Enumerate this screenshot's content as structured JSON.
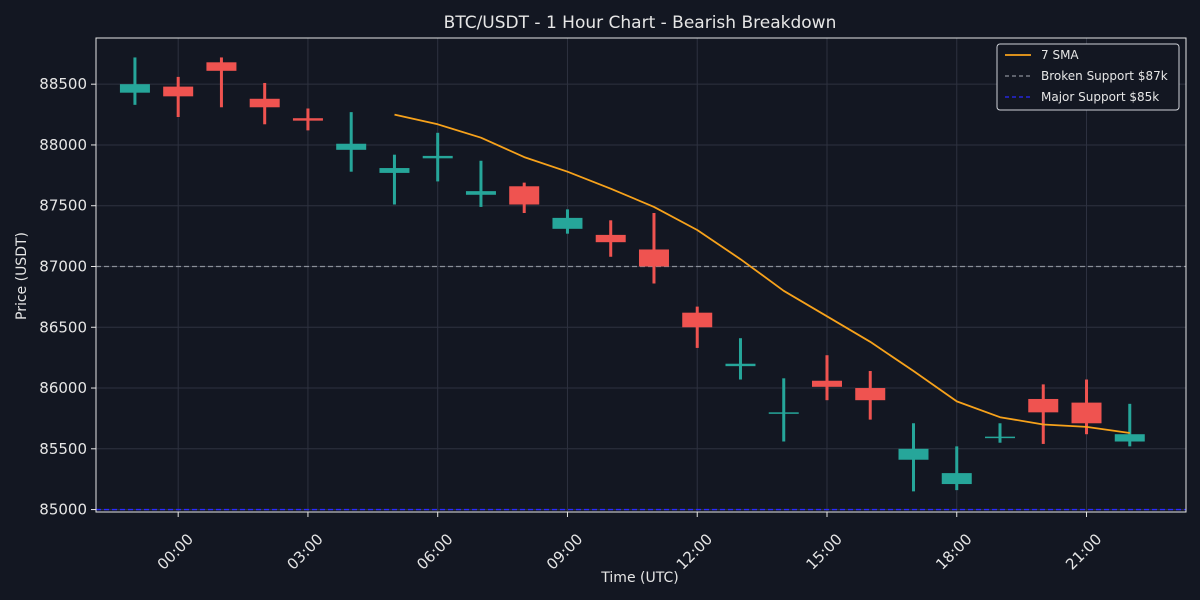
{
  "chart_data": {
    "type": "candlestick",
    "title": "BTC/USDT - 1 Hour Chart - Bearish Breakdown",
    "xlabel": "Time (UTC)",
    "ylabel": "Price (USDT)",
    "ylim": [
      84980,
      88880
    ],
    "xlim": [
      -1.9,
      23.3
    ],
    "yticks": [
      85000,
      85500,
      86000,
      86500,
      87000,
      87500,
      88000,
      88500
    ],
    "xticks": [
      {
        "hour": 0,
        "label": "00:00"
      },
      {
        "hour": 3,
        "label": "03:00"
      },
      {
        "hour": 6,
        "label": "06:00"
      },
      {
        "hour": 9,
        "label": "09:00"
      },
      {
        "hour": 12,
        "label": "12:00"
      },
      {
        "hour": 15,
        "label": "15:00"
      },
      {
        "hour": 18,
        "label": "18:00"
      },
      {
        "hour": 21,
        "label": "21:00"
      }
    ],
    "grid": true,
    "legend_position": "top-right",
    "colors": {
      "up": "#26a69a",
      "down": "#ef5350",
      "sma": "#f7a21b",
      "broken_support": "#8a8f99",
      "major_support": "#2a2aff",
      "background": "#131722",
      "grid": "#2e3240",
      "text": "#e6e6e6"
    },
    "candles": [
      {
        "hour": -1,
        "open": 88430,
        "high": 88720,
        "low": 88330,
        "close": 88500
      },
      {
        "hour": 0,
        "open": 88480,
        "high": 88560,
        "low": 88230,
        "close": 88400
      },
      {
        "hour": 1,
        "open": 88680,
        "high": 88720,
        "low": 88310,
        "close": 88610
      },
      {
        "hour": 2,
        "open": 88380,
        "high": 88510,
        "low": 88170,
        "close": 88310
      },
      {
        "hour": 3,
        "open": 88220,
        "high": 88300,
        "low": 88120,
        "close": 88200
      },
      {
        "hour": 4,
        "open": 87960,
        "high": 88270,
        "low": 87780,
        "close": 88010
      },
      {
        "hour": 5,
        "open": 87770,
        "high": 87920,
        "low": 87510,
        "close": 87810
      },
      {
        "hour": 6,
        "open": 87890,
        "high": 88100,
        "low": 87700,
        "close": 87910
      },
      {
        "hour": 7,
        "open": 87590,
        "high": 87870,
        "low": 87490,
        "close": 87620
      },
      {
        "hour": 8,
        "open": 87660,
        "high": 87690,
        "low": 87440,
        "close": 87510
      },
      {
        "hour": 9,
        "open": 87310,
        "high": 87470,
        "low": 87270,
        "close": 87400
      },
      {
        "hour": 10,
        "open": 87260,
        "high": 87380,
        "low": 87080,
        "close": 87200
      },
      {
        "hour": 11,
        "open": 87140,
        "high": 87440,
        "low": 86860,
        "close": 87000
      },
      {
        "hour": 12,
        "open": 86620,
        "high": 86670,
        "low": 86330,
        "close": 86500
      },
      {
        "hour": 13,
        "open": 86180,
        "high": 86410,
        "low": 86070,
        "close": 86200
      },
      {
        "hour": 14,
        "open": 85790,
        "high": 86080,
        "low": 85560,
        "close": 85800
      },
      {
        "hour": 15,
        "open": 86060,
        "high": 86270,
        "low": 85900,
        "close": 86010
      },
      {
        "hour": 16,
        "open": 86000,
        "high": 86140,
        "low": 85740,
        "close": 85900
      },
      {
        "hour": 17,
        "open": 85410,
        "high": 85710,
        "low": 85150,
        "close": 85500
      },
      {
        "hour": 18,
        "open": 85210,
        "high": 85520,
        "low": 85160,
        "close": 85300
      },
      {
        "hour": 19,
        "open": 85590,
        "high": 85710,
        "low": 85550,
        "close": 85600
      },
      {
        "hour": 20,
        "open": 85910,
        "high": 86030,
        "low": 85540,
        "close": 85800
      },
      {
        "hour": 21,
        "open": 85880,
        "high": 86070,
        "low": 85620,
        "close": 85710
      },
      {
        "hour": 22,
        "open": 85560,
        "high": 85870,
        "low": 85520,
        "close": 85620
      }
    ],
    "sma": {
      "name": "7 SMA",
      "points": [
        {
          "hour": 5,
          "value": 88250
        },
        {
          "hour": 6,
          "value": 88170
        },
        {
          "hour": 7,
          "value": 88060
        },
        {
          "hour": 8,
          "value": 87900
        },
        {
          "hour": 9,
          "value": 87780
        },
        {
          "hour": 10,
          "value": 87640
        },
        {
          "hour": 11,
          "value": 87490
        },
        {
          "hour": 12,
          "value": 87300
        },
        {
          "hour": 13,
          "value": 87060
        },
        {
          "hour": 14,
          "value": 86800
        },
        {
          "hour": 15,
          "value": 86590
        },
        {
          "hour": 16,
          "value": 86380
        },
        {
          "hour": 17,
          "value": 86140
        },
        {
          "hour": 18,
          "value": 85890
        },
        {
          "hour": 19,
          "value": 85760
        },
        {
          "hour": 20,
          "value": 85700
        },
        {
          "hour": 21,
          "value": 85680
        },
        {
          "hour": 22,
          "value": 85630
        }
      ]
    },
    "reference_lines": [
      {
        "name": "Broken Support $87k",
        "value": 87000,
        "style": "dashed",
        "color": "#8a8f99"
      },
      {
        "name": "Major Support $85k",
        "value": 85000,
        "style": "dashed",
        "color": "#2a2aff"
      }
    ],
    "legend": [
      {
        "label": "7 SMA",
        "color": "#f7a21b",
        "style": "solid"
      },
      {
        "label": "Broken Support $87k",
        "color": "#8a8f99",
        "style": "dashed"
      },
      {
        "label": "Major Support $85k",
        "color": "#2a2aff",
        "style": "dashed"
      }
    ]
  }
}
